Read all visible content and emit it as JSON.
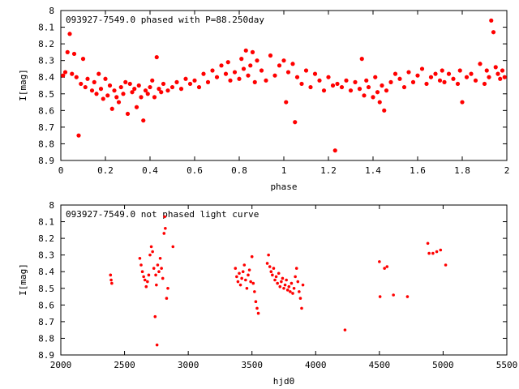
{
  "chart_data": [
    {
      "type": "scatter",
      "title": "093927-7549.0 phased with P=88.250day",
      "xlabel": "phase",
      "ylabel": "I[mag]",
      "xlim": [
        0,
        2
      ],
      "ylim": [
        8.9,
        8.0
      ],
      "y_inverted": true,
      "x_ticks": [
        "0",
        "0.2",
        "0.4",
        "0.6",
        "0.8",
        "1",
        "1.2",
        "1.4",
        "1.6",
        "1.8",
        "2"
      ],
      "y_ticks": [
        "8",
        "8.1",
        "8.2",
        "8.3",
        "8.4",
        "8.5",
        "8.6",
        "8.7",
        "8.8",
        "8.9"
      ],
      "grid": false,
      "legend": "none",
      "marker_color": "#ff0000",
      "series": [
        {
          "values": [
            [
              0.01,
              8.39
            ],
            [
              0.02,
              8.37
            ],
            [
              0.03,
              8.25
            ],
            [
              0.04,
              8.14
            ],
            [
              0.05,
              8.38
            ],
            [
              0.06,
              8.26
            ],
            [
              0.07,
              8.4
            ],
            [
              0.08,
              8.75
            ],
            [
              0.09,
              8.44
            ],
            [
              0.1,
              8.29
            ],
            [
              0.11,
              8.46
            ],
            [
              0.12,
              8.41
            ],
            [
              0.14,
              8.48
            ],
            [
              0.15,
              8.43
            ],
            [
              0.16,
              8.5
            ],
            [
              0.17,
              8.38
            ],
            [
              0.18,
              8.47
            ],
            [
              0.19,
              8.53
            ],
            [
              0.2,
              8.41
            ],
            [
              0.21,
              8.51
            ],
            [
              0.22,
              8.45
            ],
            [
              0.23,
              8.59
            ],
            [
              0.24,
              8.48
            ],
            [
              0.25,
              8.52
            ],
            [
              0.26,
              8.55
            ],
            [
              0.27,
              8.46
            ],
            [
              0.28,
              8.5
            ],
            [
              0.29,
              8.43
            ],
            [
              0.3,
              8.62
            ],
            [
              0.31,
              8.44
            ],
            [
              0.32,
              8.49
            ],
            [
              0.33,
              8.47
            ],
            [
              0.34,
              8.58
            ],
            [
              0.35,
              8.45
            ],
            [
              0.36,
              8.52
            ],
            [
              0.37,
              8.66
            ],
            [
              0.38,
              8.48
            ],
            [
              0.39,
              8.5
            ],
            [
              0.4,
              8.46
            ],
            [
              0.41,
              8.42
            ],
            [
              0.42,
              8.52
            ],
            [
              0.43,
              8.28
            ],
            [
              0.44,
              8.47
            ],
            [
              0.45,
              8.49
            ],
            [
              0.46,
              8.44
            ],
            [
              0.48,
              8.48
            ],
            [
              0.5,
              8.46
            ],
            [
              0.52,
              8.43
            ],
            [
              0.54,
              8.47
            ],
            [
              0.56,
              8.41
            ],
            [
              0.58,
              8.44
            ],
            [
              0.6,
              8.42
            ],
            [
              0.62,
              8.46
            ],
            [
              0.64,
              8.38
            ],
            [
              0.66,
              8.43
            ],
            [
              0.68,
              8.36
            ],
            [
              0.7,
              8.4
            ],
            [
              0.72,
              8.33
            ],
            [
              0.74,
              8.38
            ],
            [
              0.75,
              8.31
            ],
            [
              0.76,
              8.42
            ],
            [
              0.78,
              8.37
            ],
            [
              0.8,
              8.41
            ],
            [
              0.81,
              8.29
            ],
            [
              0.82,
              8.35
            ],
            [
              0.83,
              8.24
            ],
            [
              0.84,
              8.39
            ],
            [
              0.85,
              8.33
            ],
            [
              0.86,
              8.25
            ],
            [
              0.87,
              8.43
            ],
            [
              0.88,
              8.3
            ],
            [
              0.9,
              8.36
            ],
            [
              0.92,
              8.42
            ],
            [
              0.94,
              8.27
            ],
            [
              0.96,
              8.39
            ],
            [
              0.98,
              8.33
            ],
            [
              1.0,
              8.3
            ],
            [
              1.01,
              8.55
            ],
            [
              1.02,
              8.37
            ],
            [
              1.04,
              8.32
            ],
            [
              1.05,
              8.67
            ],
            [
              1.06,
              8.4
            ],
            [
              1.08,
              8.44
            ],
            [
              1.1,
              8.36
            ],
            [
              1.12,
              8.46
            ],
            [
              1.14,
              8.38
            ],
            [
              1.16,
              8.42
            ],
            [
              1.18,
              8.48
            ],
            [
              1.2,
              8.4
            ],
            [
              1.22,
              8.45
            ],
            [
              1.23,
              8.84
            ],
            [
              1.24,
              8.44
            ],
            [
              1.26,
              8.46
            ],
            [
              1.28,
              8.42
            ],
            [
              1.3,
              8.48
            ],
            [
              1.32,
              8.43
            ],
            [
              1.34,
              8.47
            ],
            [
              1.35,
              8.29
            ],
            [
              1.36,
              8.51
            ],
            [
              1.37,
              8.42
            ],
            [
              1.38,
              8.46
            ],
            [
              1.4,
              8.52
            ],
            [
              1.41,
              8.4
            ],
            [
              1.42,
              8.49
            ],
            [
              1.43,
              8.55
            ],
            [
              1.44,
              8.45
            ],
            [
              1.45,
              8.6
            ],
            [
              1.46,
              8.48
            ],
            [
              1.48,
              8.43
            ],
            [
              1.5,
              8.38
            ],
            [
              1.52,
              8.41
            ],
            [
              1.54,
              8.46
            ],
            [
              1.56,
              8.37
            ],
            [
              1.58,
              8.43
            ],
            [
              1.6,
              8.39
            ],
            [
              1.62,
              8.35
            ],
            [
              1.64,
              8.44
            ],
            [
              1.66,
              8.4
            ],
            [
              1.68,
              8.38
            ],
            [
              1.7,
              8.42
            ],
            [
              1.71,
              8.36
            ],
            [
              1.72,
              8.43
            ],
            [
              1.74,
              8.38
            ],
            [
              1.76,
              8.41
            ],
            [
              1.78,
              8.44
            ],
            [
              1.79,
              8.36
            ],
            [
              1.8,
              8.55
            ],
            [
              1.82,
              8.4
            ],
            [
              1.84,
              8.38
            ],
            [
              1.86,
              8.42
            ],
            [
              1.88,
              8.32
            ],
            [
              1.9,
              8.44
            ],
            [
              1.91,
              8.36
            ],
            [
              1.92,
              8.4
            ],
            [
              1.93,
              8.06
            ],
            [
              1.94,
              8.13
            ],
            [
              1.95,
              8.34
            ],
            [
              1.96,
              8.38
            ],
            [
              1.97,
              8.41
            ],
            [
              1.98,
              8.36
            ],
            [
              1.99,
              8.4
            ]
          ]
        }
      ]
    },
    {
      "type": "scatter",
      "title": "093927-7549.0 not phased light curve",
      "xlabel": "hjd0",
      "ylabel": "I[mag]",
      "xlim": [
        2000,
        5500
      ],
      "ylim": [
        8.9,
        8.0
      ],
      "y_inverted": true,
      "x_ticks": [
        "2000",
        "2500",
        "3000",
        "3500",
        "4000",
        "4500",
        "5000",
        "5500"
      ],
      "y_ticks": [
        "8",
        "8.1",
        "8.2",
        "8.3",
        "8.4",
        "8.5",
        "8.6",
        "8.7",
        "8.8",
        "8.9"
      ],
      "grid": false,
      "legend": "none",
      "marker_color": "#ff0000",
      "series": [
        {
          "values": [
            [
              2390,
              8.42
            ],
            [
              2395,
              8.45
            ],
            [
              2400,
              8.47
            ],
            [
              2620,
              8.32
            ],
            [
              2630,
              8.36
            ],
            [
              2640,
              8.4
            ],
            [
              2650,
              8.43
            ],
            [
              2660,
              8.45
            ],
            [
              2670,
              8.49
            ],
            [
              2680,
              8.46
            ],
            [
              2690,
              8.42
            ],
            [
              2700,
              8.3
            ],
            [
              2710,
              8.25
            ],
            [
              2720,
              8.28
            ],
            [
              2730,
              8.38
            ],
            [
              2740,
              8.67
            ],
            [
              2745,
              8.42
            ],
            [
              2750,
              8.48
            ],
            [
              2755,
              8.84
            ],
            [
              2760,
              8.36
            ],
            [
              2770,
              8.4
            ],
            [
              2780,
              8.32
            ],
            [
              2790,
              8.38
            ],
            [
              2800,
              8.44
            ],
            [
              2810,
              8.17
            ],
            [
              2815,
              8.07
            ],
            [
              2820,
              8.14
            ],
            [
              2830,
              8.56
            ],
            [
              2840,
              8.5
            ],
            [
              2880,
              8.25
            ],
            [
              3370,
              8.38
            ],
            [
              3380,
              8.43
            ],
            [
              3390,
              8.46
            ],
            [
              3400,
              8.41
            ],
            [
              3410,
              8.48
            ],
            [
              3420,
              8.44
            ],
            [
              3430,
              8.4
            ],
            [
              3440,
              8.36
            ],
            [
              3450,
              8.45
            ],
            [
              3460,
              8.5
            ],
            [
              3470,
              8.42
            ],
            [
              3480,
              8.39
            ],
            [
              3490,
              8.46
            ],
            [
              3500,
              8.31
            ],
            [
              3510,
              8.47
            ],
            [
              3520,
              8.52
            ],
            [
              3530,
              8.58
            ],
            [
              3540,
              8.62
            ],
            [
              3550,
              8.65
            ],
            [
              3620,
              8.35
            ],
            [
              3630,
              8.3
            ],
            [
              3640,
              8.37
            ],
            [
              3650,
              8.4
            ],
            [
              3660,
              8.42
            ],
            [
              3670,
              8.38
            ],
            [
              3680,
              8.45
            ],
            [
              3690,
              8.43
            ],
            [
              3700,
              8.47
            ],
            [
              3710,
              8.41
            ],
            [
              3720,
              8.49
            ],
            [
              3730,
              8.46
            ],
            [
              3740,
              8.44
            ],
            [
              3750,
              8.5
            ],
            [
              3760,
              8.48
            ],
            [
              3770,
              8.45
            ],
            [
              3780,
              8.51
            ],
            [
              3790,
              8.49
            ],
            [
              3800,
              8.52
            ],
            [
              3810,
              8.47
            ],
            [
              3820,
              8.53
            ],
            [
              3830,
              8.5
            ],
            [
              3840,
              8.43
            ],
            [
              3850,
              8.38
            ],
            [
              3860,
              8.46
            ],
            [
              3870,
              8.52
            ],
            [
              3880,
              8.56
            ],
            [
              3890,
              8.62
            ],
            [
              3900,
              8.48
            ],
            [
              4230,
              8.75
            ],
            [
              4500,
              8.34
            ],
            [
              4505,
              8.55
            ],
            [
              4540,
              8.38
            ],
            [
              4560,
              8.37
            ],
            [
              4610,
              8.54
            ],
            [
              4720,
              8.55
            ],
            [
              4880,
              8.23
            ],
            [
              4890,
              8.29
            ],
            [
              4920,
              8.29
            ],
            [
              4950,
              8.28
            ],
            [
              4980,
              8.27
            ],
            [
              5020,
              8.36
            ]
          ]
        }
      ]
    }
  ]
}
